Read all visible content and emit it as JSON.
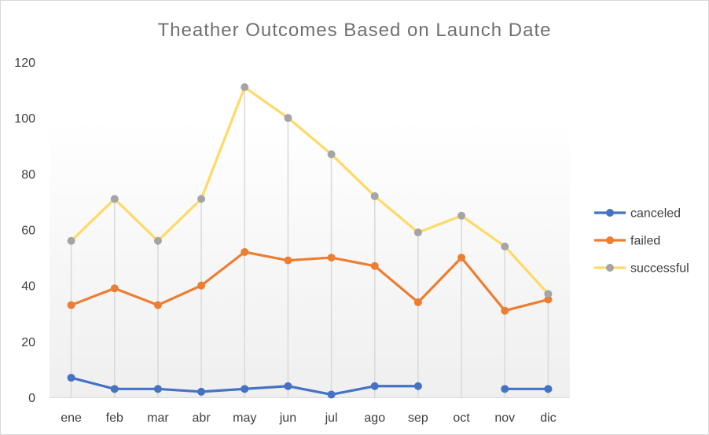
{
  "chart_data": {
    "type": "line",
    "title": "Theather Outcomes Based on Launch Date",
    "xlabel": "",
    "ylabel": "",
    "categories": [
      "ene",
      "feb",
      "mar",
      "abr",
      "may",
      "jun",
      "jul",
      "ago",
      "sep",
      "oct",
      "nov",
      "dic"
    ],
    "ylim": [
      0,
      120
    ],
    "yticks": [
      0,
      20,
      40,
      60,
      80,
      100,
      120
    ],
    "grid": false,
    "drop_lines": true,
    "legend": "right",
    "series": [
      {
        "name": "canceled",
        "color": "#4472C4",
        "values": [
          7,
          3,
          3,
          2,
          3,
          4,
          1,
          4,
          4,
          null,
          3,
          3
        ]
      },
      {
        "name": "failed",
        "color": "#ED7D31",
        "values": [
          33,
          39,
          33,
          40,
          52,
          49,
          50,
          47,
          34,
          50,
          31,
          35
        ]
      },
      {
        "name": "successful",
        "color": "#FFD966",
        "marker_color": "#A5A5A5",
        "values": [
          56,
          71,
          56,
          71,
          111,
          100,
          87,
          72,
          59,
          65,
          54,
          37
        ]
      }
    ]
  }
}
